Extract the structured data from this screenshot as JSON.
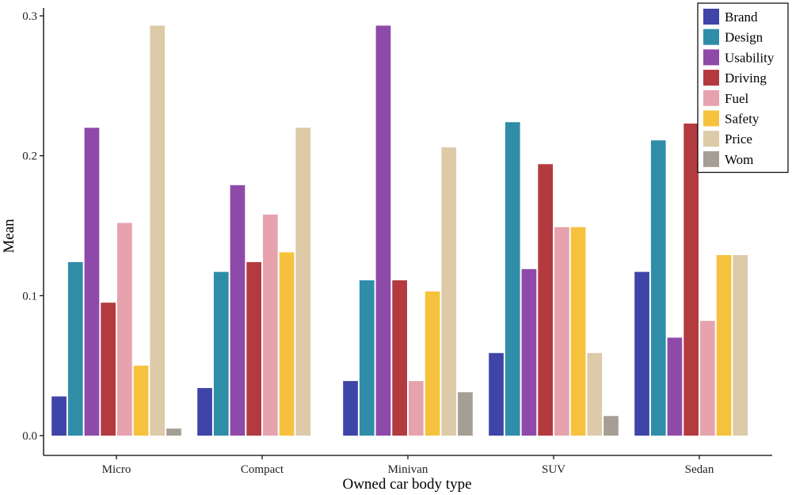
{
  "chart_data": {
    "type": "bar",
    "title": "",
    "xlabel": "Owned car body type",
    "ylabel": "Mean",
    "ylim": [
      0,
      0.3
    ],
    "yticks": [
      "0.0",
      "0.1",
      "0.2",
      "0.3"
    ],
    "grid": false,
    "legend_position": "top-right",
    "categories": [
      "Micro",
      "Compact",
      "Minivan",
      "SUV",
      "Sedan"
    ],
    "series": [
      {
        "name": "Brand",
        "color": "#3f44a8",
        "values": [
          0.028,
          0.034,
          0.039,
          0.059,
          0.117
        ]
      },
      {
        "name": "Design",
        "color": "#2f8da8",
        "values": [
          0.124,
          0.117,
          0.111,
          0.224,
          0.211
        ]
      },
      {
        "name": "Usability",
        "color": "#8e4aa8",
        "values": [
          0.22,
          0.179,
          0.293,
          0.119,
          0.07
        ]
      },
      {
        "name": "Driving",
        "color": "#b33a3f",
        "values": [
          0.095,
          0.124,
          0.111,
          0.194,
          0.223
        ]
      },
      {
        "name": "Fuel",
        "color": "#e6a3ae",
        "values": [
          0.152,
          0.158,
          0.039,
          0.149,
          0.082
        ]
      },
      {
        "name": "Safety",
        "color": "#f6c23e",
        "values": [
          0.05,
          0.131,
          0.103,
          0.149,
          0.129
        ]
      },
      {
        "name": "Price",
        "color": "#dccaa8",
        "values": [
          0.293,
          0.22,
          0.206,
          0.059,
          0.129
        ]
      },
      {
        "name": "Wom",
        "color": "#a59e94",
        "values": [
          0.005,
          0.0,
          0.031,
          0.014,
          0.0
        ]
      }
    ]
  }
}
